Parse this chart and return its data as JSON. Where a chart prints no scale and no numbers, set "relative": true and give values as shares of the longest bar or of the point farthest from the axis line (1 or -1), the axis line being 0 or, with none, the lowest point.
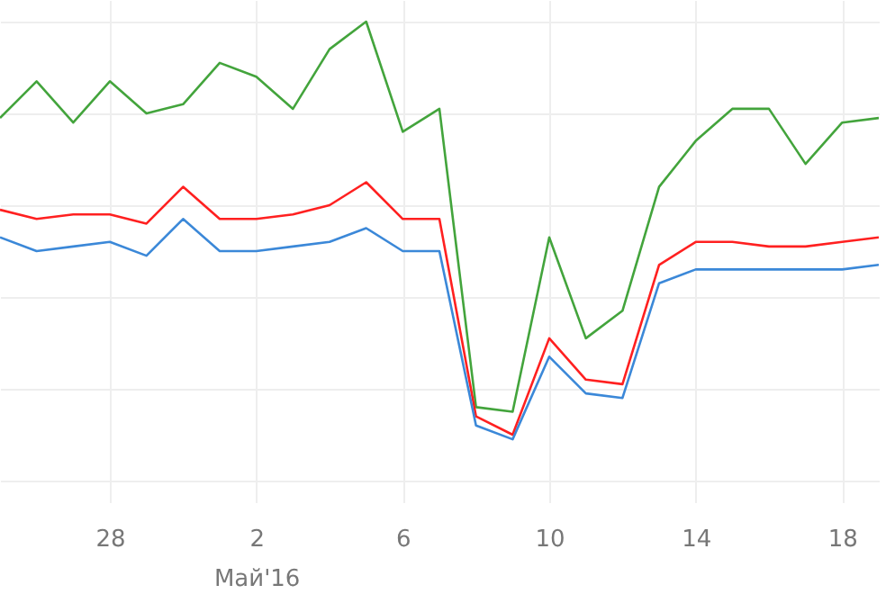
{
  "chart_data": {
    "type": "line",
    "relative": true,
    "grid": true,
    "x": [
      "2016-04-25",
      "2016-04-26",
      "2016-04-27",
      "2016-04-28",
      "2016-04-29",
      "2016-04-30",
      "2016-05-01",
      "2016-05-02",
      "2016-05-03",
      "2016-05-04",
      "2016-05-05",
      "2016-05-06",
      "2016-05-07",
      "2016-05-08",
      "2016-05-09",
      "2016-05-10",
      "2016-05-11",
      "2016-05-12",
      "2016-05-13",
      "2016-05-14",
      "2016-05-15",
      "2016-05-16",
      "2016-05-17",
      "2016-05-18",
      "2016-05-19"
    ],
    "xlim": [
      "2016-04-25",
      "2016-05-19"
    ],
    "xticks": [
      {
        "value": "2016-04-28",
        "label": "28"
      },
      {
        "value": "2016-05-02",
        "label": "2\nМай'16"
      },
      {
        "value": "2016-05-06",
        "label": "6"
      },
      {
        "value": "2016-05-10",
        "label": "10"
      },
      {
        "value": "2016-05-14",
        "label": "14"
      },
      {
        "value": "2016-05-18",
        "label": "18"
      }
    ],
    "series": [
      {
        "color": "#43a43c",
        "values": [
          0.79,
          0.87,
          0.78,
          0.87,
          0.8,
          0.82,
          0.91,
          0.88,
          0.81,
          0.94,
          1,
          0.76,
          0.81,
          0.16,
          0.15,
          0.53,
          0.31,
          0.37,
          0.64,
          0.74,
          0.81,
          0.81,
          0.69,
          0.78,
          0.79
        ]
      },
      {
        "color": "#ff2020",
        "values": [
          0.59,
          0.57,
          0.58,
          0.58,
          0.56,
          0.64,
          0.57,
          0.57,
          0.58,
          0.6,
          0.65,
          0.57,
          0.57,
          0.14,
          0.1,
          0.31,
          0.22,
          0.21,
          0.47,
          0.52,
          0.52,
          0.51,
          0.51,
          0.52,
          0.53
        ]
      },
      {
        "color": "#3b88d8",
        "values": [
          0.53,
          0.5,
          0.51,
          0.52,
          0.49,
          0.57,
          0.5,
          0.5,
          0.51,
          0.52,
          0.55,
          0.5,
          0.5,
          0.12,
          0.09,
          0.27,
          0.19,
          0.18,
          0.43,
          0.46,
          0.46,
          0.46,
          0.46,
          0.46,
          0.47
        ]
      }
    ],
    "marker": "none",
    "line_style": "solid"
  }
}
